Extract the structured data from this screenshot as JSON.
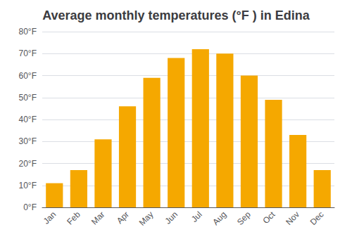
{
  "chart_data": {
    "type": "bar",
    "title": "Average monthly temperatures (°F ) in Edina",
    "categories": [
      "Jan",
      "Feb",
      "Mar",
      "Apr",
      "May",
      "Jun",
      "Jul",
      "Aug",
      "Sep",
      "Oct",
      "Nov",
      "Dec"
    ],
    "values": [
      11,
      17,
      31,
      46,
      59,
      68,
      72,
      70,
      60,
      49,
      33,
      17
    ],
    "color": "#F5A800",
    "ylim": [
      0,
      80
    ],
    "yticks": [
      {
        "value": 0,
        "label": "0°F"
      },
      {
        "value": 10,
        "label": "10°F"
      },
      {
        "value": 20,
        "label": "20°F"
      },
      {
        "value": 30,
        "label": "30°F"
      },
      {
        "value": 40,
        "label": "40°F"
      },
      {
        "value": 50,
        "label": "50°F"
      },
      {
        "value": 60,
        "label": "60°F"
      },
      {
        "value": 70,
        "label": "70°F"
      },
      {
        "value": 80,
        "label": "80°F"
      }
    ],
    "grid": true
  }
}
